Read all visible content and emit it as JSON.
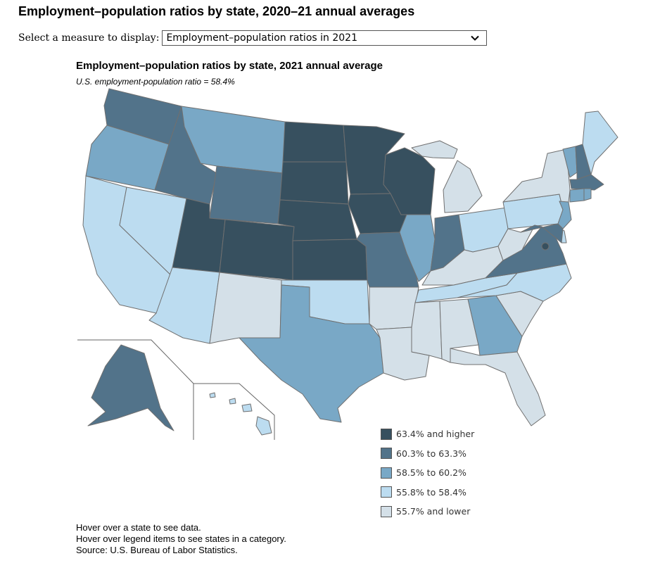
{
  "page": {
    "title": "Employment–population ratios by state, 2020–21 annual averages",
    "selector_label": "Select a measure to display:",
    "selector_value": "Employment–population ratios in 2021"
  },
  "map": {
    "title": "Employment–population ratios by state, 2021 annual average",
    "subtitle": "U.S. employment-population ratio = 58.4%",
    "legend": [
      {
        "label": "63.4% and higher",
        "color": "#37505f"
      },
      {
        "label": "60.3% to 63.3%",
        "color": "#52738a"
      },
      {
        "label": "58.5% to 60.2%",
        "color": "#79a8c6"
      },
      {
        "label": "55.8% to 58.4%",
        "color": "#bcdcf0"
      },
      {
        "label": "55.7% and lower",
        "color": "#d4e0e8"
      }
    ],
    "states": [
      {
        "name": "WA",
        "category": 1
      },
      {
        "name": "OR",
        "category": 2
      },
      {
        "name": "CA",
        "category": 3
      },
      {
        "name": "ID",
        "category": 1
      },
      {
        "name": "NV",
        "category": 3
      },
      {
        "name": "MT",
        "category": 2
      },
      {
        "name": "WY",
        "category": 1
      },
      {
        "name": "UT",
        "category": 0
      },
      {
        "name": "AZ",
        "category": 3
      },
      {
        "name": "CO",
        "category": 0
      },
      {
        "name": "NM",
        "category": 4
      },
      {
        "name": "ND",
        "category": 0
      },
      {
        "name": "SD",
        "category": 0
      },
      {
        "name": "NE",
        "category": 0
      },
      {
        "name": "KS",
        "category": 0
      },
      {
        "name": "OK",
        "category": 3
      },
      {
        "name": "TX",
        "category": 2
      },
      {
        "name": "MN",
        "category": 0
      },
      {
        "name": "IA",
        "category": 0
      },
      {
        "name": "MO",
        "category": 1
      },
      {
        "name": "AR",
        "category": 4
      },
      {
        "name": "LA",
        "category": 4
      },
      {
        "name": "WI",
        "category": 0
      },
      {
        "name": "IL",
        "category": 2
      },
      {
        "name": "MI",
        "category": 4
      },
      {
        "name": "IN",
        "category": 1
      },
      {
        "name": "OH",
        "category": 3
      },
      {
        "name": "KY",
        "category": 4
      },
      {
        "name": "TN",
        "category": 3
      },
      {
        "name": "MS",
        "category": 4
      },
      {
        "name": "AL",
        "category": 4
      },
      {
        "name": "GA",
        "category": 2
      },
      {
        "name": "FL",
        "category": 4
      },
      {
        "name": "SC",
        "category": 4
      },
      {
        "name": "NC",
        "category": 3
      },
      {
        "name": "VA",
        "category": 1
      },
      {
        "name": "WV",
        "category": 4
      },
      {
        "name": "PA",
        "category": 3
      },
      {
        "name": "NY",
        "category": 4
      },
      {
        "name": "VT",
        "category": 2
      },
      {
        "name": "NH",
        "category": 1
      },
      {
        "name": "ME",
        "category": 3
      },
      {
        "name": "MA",
        "category": 1
      },
      {
        "name": "CT",
        "category": 2
      },
      {
        "name": "RI",
        "category": 2
      },
      {
        "name": "NJ",
        "category": 2
      },
      {
        "name": "DE",
        "category": 3
      },
      {
        "name": "MD",
        "category": 1
      },
      {
        "name": "DC",
        "category": 0
      },
      {
        "name": "AK",
        "category": 1
      },
      {
        "name": "HI",
        "category": 3
      }
    ]
  },
  "notes": {
    "line1": "Hover over a state to see data.",
    "line2": "Hover over legend items to see states in a category.",
    "line3": "Source: U.S. Bureau of Labor Statistics."
  }
}
